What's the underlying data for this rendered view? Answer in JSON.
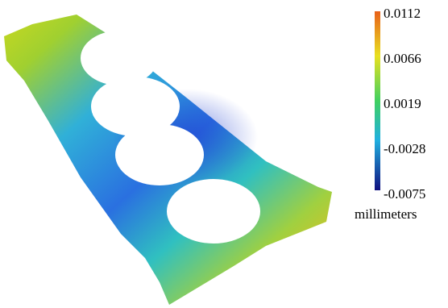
{
  "colorbar": {
    "ticks": [
      "0.0112",
      "0.0066",
      "0.0019",
      "-0.0028",
      "-0.0075"
    ],
    "unit": "millimeters"
  }
}
